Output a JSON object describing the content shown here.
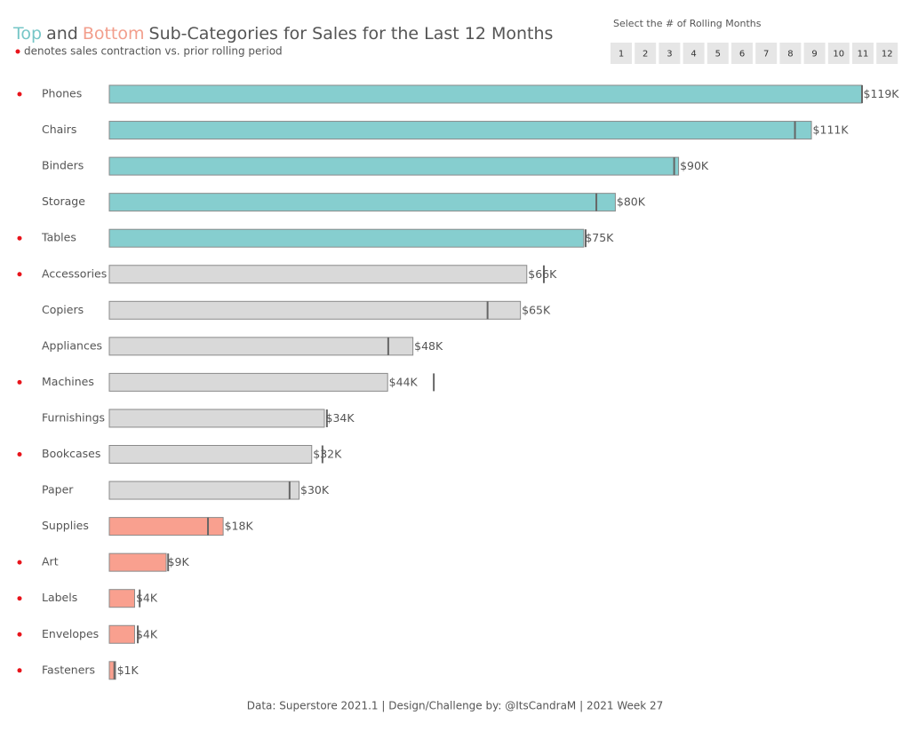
{
  "chart_data": {
    "type": "bar",
    "title_parts": [
      {
        "text": "Top",
        "color": "#76c6c7"
      },
      {
        "text": "and",
        "color": "#555555"
      },
      {
        "text": "Bottom",
        "color": "#f29e8c"
      },
      {
        "text": "Sub-Categories for Sales for the Last 12 Months",
        "color": "#555555"
      }
    ],
    "subtitle": "denotes sales contraction vs. prior rolling period",
    "categories": [
      "Phones",
      "Chairs",
      "Binders",
      "Storage",
      "Tables",
      "Accessories",
      "Copiers",
      "Appliances",
      "Machines",
      "Furnishings",
      "Bookcases",
      "Paper",
      "Supplies",
      "Art",
      "Labels",
      "Envelopes",
      "Fasteners"
    ],
    "values": [
      119,
      111,
      90,
      80,
      75,
      66,
      65,
      48,
      44,
      34,
      32,
      30,
      18,
      9,
      4,
      4,
      1
    ],
    "value_labels": [
      "$119K",
      "$111K",
      "$90K",
      "$80K",
      "$75K",
      "$66K",
      "$65K",
      "$48K",
      "$44K",
      "$34K",
      "$32K",
      "$30K",
      "$18K",
      "$9K",
      "$4K",
      "$4K",
      "$1K"
    ],
    "prior_values": [
      119,
      108.4,
      89.3,
      77,
      75.3,
      68.7,
      59.8,
      44.1,
      51.3,
      34.4,
      33.7,
      28.5,
      15.6,
      9.3,
      4.8,
      4.5,
      0.8
    ],
    "contraction": [
      true,
      false,
      false,
      false,
      true,
      true,
      false,
      false,
      true,
      false,
      true,
      false,
      false,
      true,
      true,
      true,
      true
    ],
    "colors": [
      "#86cecf",
      "#86cecf",
      "#86cecf",
      "#86cecf",
      "#86cecf",
      "#d9d9d9",
      "#d9d9d9",
      "#d9d9d9",
      "#d9d9d9",
      "#d9d9d9",
      "#d9d9d9",
      "#d9d9d9",
      "#f9a08f",
      "#f9a08f",
      "#f9a08f",
      "#f9a08f",
      "#f9a08f"
    ],
    "contraction_color": "#e8141b",
    "rolling_months": {
      "label": "Select the # of Rolling Months",
      "options": [
        1,
        2,
        3,
        4,
        5,
        6,
        7,
        8,
        9,
        10,
        11,
        12
      ]
    },
    "footer": "Data: Superstore 2021.1 | Design/Challenge by: @ItsCandraM | 2021 Week 27"
  }
}
